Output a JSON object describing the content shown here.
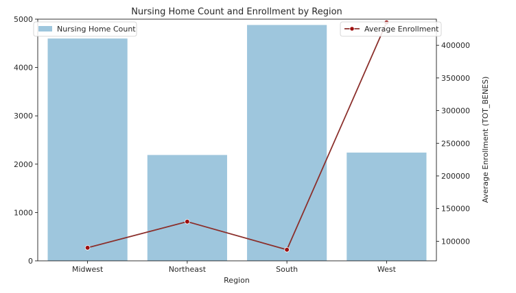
{
  "chart_data": {
    "type": "bar",
    "title": "Nursing Home Count and Enrollment by Region",
    "xlabel": "Region",
    "ylabel": "",
    "y2label": "Average Enrollment (TOT_BENES)",
    "categories": [
      "Midwest",
      "Northeast",
      "South",
      "West"
    ],
    "ylim": [
      0,
      5000
    ],
    "y2lim": [
      70000,
      440000
    ],
    "yticks": [
      0,
      1000,
      2000,
      3000,
      4000,
      5000
    ],
    "y2ticks": [
      100000,
      150000,
      200000,
      250000,
      300000,
      350000,
      400000
    ],
    "grid": false,
    "series": [
      {
        "name": "Nursing Home Count",
        "type": "bar",
        "axis": "left",
        "color": "#9ec6dd",
        "values": [
          4600,
          2190,
          4880,
          2240
        ],
        "legend_position": "top-left"
      },
      {
        "name": "Average Enrollment",
        "type": "line",
        "axis": "right",
        "color": "#8b2f2b",
        "marker_color": "#9e0f0f",
        "values": [
          90000,
          130000,
          87000,
          435000
        ],
        "legend_position": "top-right"
      }
    ]
  }
}
